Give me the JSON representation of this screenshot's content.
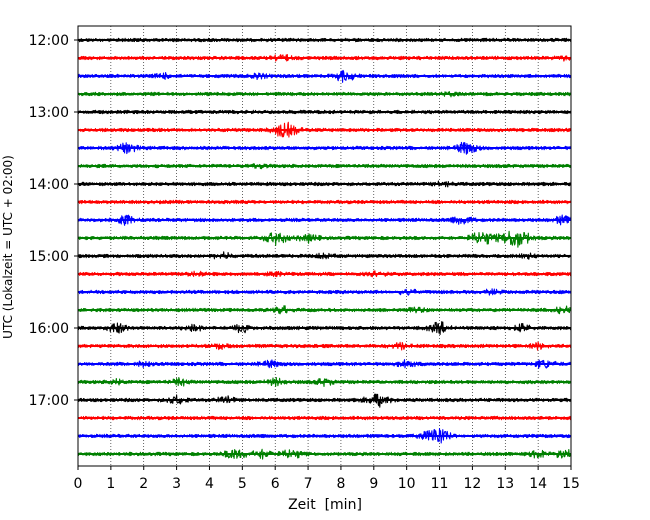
{
  "chart_data": {
    "type": "line",
    "title": "",
    "xlabel": "Zeit  [min]",
    "ylabel": "UTC (Lokalzeit = UTC + 02:00)",
    "xlim": [
      0,
      15
    ],
    "x_ticks": [
      "0",
      "1",
      "2",
      "3",
      "4",
      "5",
      "6",
      "7",
      "8",
      "9",
      "10",
      "11",
      "12",
      "13",
      "14",
      "15"
    ],
    "y_ticks": [
      "12:00",
      "13:00",
      "14:00",
      "15:00",
      "16:00",
      "17:00"
    ],
    "grid": {
      "x": "dotted vertical lines at each minute",
      "y": false
    },
    "trace_start_times": [
      "12:00",
      "12:15",
      "12:30",
      "12:45",
      "13:00",
      "13:15",
      "13:30",
      "13:45",
      "14:00",
      "14:15",
      "14:30",
      "14:45",
      "15:00",
      "15:15",
      "15:30",
      "15:45",
      "16:00",
      "16:15",
      "16:30",
      "16:45",
      "17:00",
      "17:15",
      "17:30",
      "17:45"
    ],
    "trace_colors": [
      "#000000",
      "#ff0000",
      "#0000ff",
      "#008000"
    ],
    "events": [
      {
        "row": 1,
        "minute": 6.2,
        "amp": 0.3
      },
      {
        "row": 1,
        "minute": 14.7,
        "amp": 0.2
      },
      {
        "row": 2,
        "minute": 8.1,
        "amp": 0.5
      },
      {
        "row": 2,
        "minute": 2.6,
        "amp": 0.2
      },
      {
        "row": 2,
        "minute": 5.5,
        "amp": 0.2
      },
      {
        "row": 3,
        "minute": 11.3,
        "amp": 0.15
      },
      {
        "row": 5,
        "minute": 6.3,
        "amp": 0.7
      },
      {
        "row": 6,
        "minute": 1.5,
        "amp": 0.4
      },
      {
        "row": 6,
        "minute": 11.8,
        "amp": 0.5
      },
      {
        "row": 7,
        "minute": 5.5,
        "amp": 0.15
      },
      {
        "row": 8,
        "minute": 11.1,
        "amp": 0.2
      },
      {
        "row": 10,
        "minute": 1.4,
        "amp": 0.4
      },
      {
        "row": 10,
        "minute": 11.7,
        "amp": 0.4
      },
      {
        "row": 10,
        "minute": 14.8,
        "amp": 0.4
      },
      {
        "row": 11,
        "minute": 6.0,
        "amp": 0.6
      },
      {
        "row": 11,
        "minute": 7.0,
        "amp": 0.4
      },
      {
        "row": 11,
        "minute": 12.3,
        "amp": 0.6
      },
      {
        "row": 11,
        "minute": 13.3,
        "amp": 0.9
      },
      {
        "row": 12,
        "minute": 4.4,
        "amp": 0.3
      },
      {
        "row": 12,
        "minute": 7.5,
        "amp": 0.2
      },
      {
        "row": 12,
        "minute": 13.7,
        "amp": 0.2
      },
      {
        "row": 13,
        "minute": 3.6,
        "amp": 0.2
      },
      {
        "row": 13,
        "minute": 9.1,
        "amp": 0.2
      },
      {
        "row": 13,
        "minute": 6.0,
        "amp": 0.15
      },
      {
        "row": 14,
        "minute": 10.0,
        "amp": 0.3
      },
      {
        "row": 14,
        "minute": 12.6,
        "amp": 0.2
      },
      {
        "row": 15,
        "minute": 6.2,
        "amp": 0.3
      },
      {
        "row": 15,
        "minute": 14.8,
        "amp": 0.3
      },
      {
        "row": 15,
        "minute": 10.3,
        "amp": 0.2
      },
      {
        "row": 16,
        "minute": 1.2,
        "amp": 0.4
      },
      {
        "row": 16,
        "minute": 5.0,
        "amp": 0.4
      },
      {
        "row": 16,
        "minute": 11.0,
        "amp": 0.5
      },
      {
        "row": 16,
        "minute": 3.5,
        "amp": 0.3
      },
      {
        "row": 16,
        "minute": 13.5,
        "amp": 0.3
      },
      {
        "row": 17,
        "minute": 9.8,
        "amp": 0.3
      },
      {
        "row": 17,
        "minute": 14.0,
        "amp": 0.3
      },
      {
        "row": 17,
        "minute": 4.3,
        "amp": 0.2
      },
      {
        "row": 18,
        "minute": 5.8,
        "amp": 0.3
      },
      {
        "row": 18,
        "minute": 10.0,
        "amp": 0.3
      },
      {
        "row": 18,
        "minute": 14.2,
        "amp": 0.4
      },
      {
        "row": 18,
        "minute": 2.0,
        "amp": 0.2
      },
      {
        "row": 19,
        "minute": 3.1,
        "amp": 0.3
      },
      {
        "row": 19,
        "minute": 6.0,
        "amp": 0.3
      },
      {
        "row": 19,
        "minute": 7.5,
        "amp": 0.3
      },
      {
        "row": 19,
        "minute": 1.2,
        "amp": 0.2
      },
      {
        "row": 20,
        "minute": 3.0,
        "amp": 0.4
      },
      {
        "row": 20,
        "minute": 9.1,
        "amp": 0.6
      },
      {
        "row": 20,
        "minute": 4.5,
        "amp": 0.3
      },
      {
        "row": 22,
        "minute": 10.9,
        "amp": 0.8
      },
      {
        "row": 23,
        "minute": 4.8,
        "amp": 0.5
      },
      {
        "row": 23,
        "minute": 5.6,
        "amp": 0.4
      },
      {
        "row": 23,
        "minute": 6.5,
        "amp": 0.4
      },
      {
        "row": 23,
        "minute": 14.0,
        "amp": 0.3
      },
      {
        "row": 23,
        "minute": 14.8,
        "amp": 0.4
      }
    ]
  }
}
